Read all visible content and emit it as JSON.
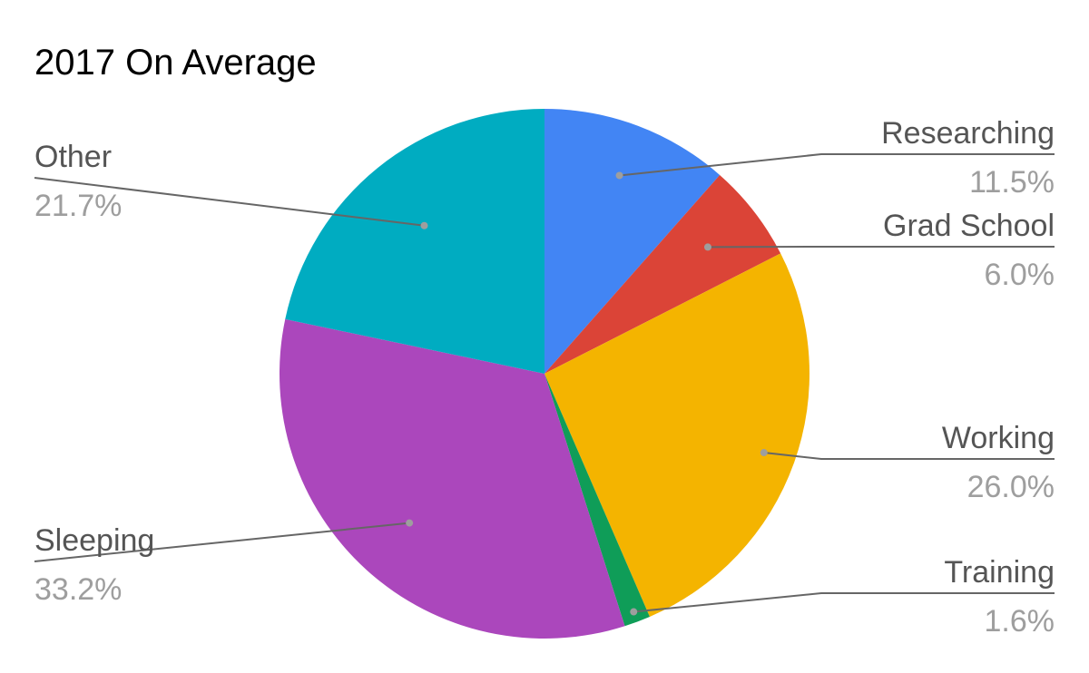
{
  "chart_data": {
    "type": "pie",
    "title": "2017 On Average",
    "legend": "none",
    "slices": [
      {
        "label": "Researching",
        "value": 11.5,
        "percent_label": "11.5%",
        "color": "#4285f4"
      },
      {
        "label": "Grad School",
        "value": 6.0,
        "percent_label": "6.0%",
        "color": "#db4437"
      },
      {
        "label": "Working",
        "value": 26.0,
        "percent_label": "26.0%",
        "color": "#f4b400"
      },
      {
        "label": "Training",
        "value": 1.6,
        "percent_label": "1.6%",
        "color": "#0f9d58"
      },
      {
        "label": "Sleeping",
        "value": 33.2,
        "percent_label": "33.2%",
        "color": "#ab47bc"
      },
      {
        "label": "Other",
        "value": 21.7,
        "percent_label": "21.7%",
        "color": "#00acc1"
      }
    ]
  }
}
